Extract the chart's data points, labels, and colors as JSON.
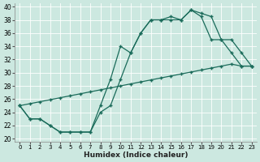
{
  "xlabel": "Humidex (Indice chaleur)",
  "bg_color": "#cce8e0",
  "grid_color": "#b8d8d0",
  "line_color": "#1a6b5a",
  "xlim": [
    -0.5,
    23.5
  ],
  "ylim": [
    19.5,
    40.5
  ],
  "xticks": [
    0,
    1,
    2,
    3,
    4,
    5,
    6,
    7,
    8,
    9,
    10,
    11,
    12,
    13,
    14,
    15,
    16,
    17,
    18,
    19,
    20,
    21,
    22,
    23
  ],
  "yticks": [
    20,
    22,
    24,
    26,
    28,
    30,
    32,
    34,
    36,
    38,
    40
  ],
  "curve1_x": [
    0,
    1,
    2,
    3,
    4,
    5,
    6,
    7,
    8,
    9,
    10,
    11,
    12,
    13,
    14,
    15,
    16,
    17,
    18,
    19,
    20,
    21,
    22,
    23
  ],
  "curve1_y": [
    25,
    23,
    23,
    22,
    21,
    21,
    21,
    21,
    24,
    25,
    29,
    33,
    36,
    38,
    38,
    38,
    38,
    39.5,
    38.5,
    35,
    35,
    33,
    31,
    31
  ],
  "curve2_x": [
    0,
    1,
    2,
    3,
    4,
    5,
    6,
    7,
    8,
    9,
    10,
    11,
    12,
    13,
    14,
    15,
    16,
    17,
    18,
    19,
    20,
    21,
    22,
    23
  ],
  "curve2_y": [
    25,
    23,
    23,
    22,
    21,
    21,
    21,
    21,
    25,
    29,
    34,
    33,
    36,
    38,
    38,
    38.5,
    38,
    39.5,
    39,
    38.5,
    35,
    35,
    33,
    31
  ],
  "curve3_x": [
    0,
    1,
    2,
    3,
    4,
    5,
    6,
    7,
    8,
    9,
    10,
    11,
    12,
    13,
    14,
    15,
    16,
    17,
    18,
    19,
    20,
    21,
    22,
    23
  ],
  "curve3_y": [
    25,
    25.3,
    25.6,
    25.9,
    26.2,
    26.5,
    26.8,
    27.1,
    27.4,
    27.7,
    28.0,
    28.3,
    28.6,
    28.9,
    29.2,
    29.5,
    29.8,
    30.1,
    30.4,
    30.7,
    31.0,
    31.3,
    31.0,
    31.0
  ]
}
